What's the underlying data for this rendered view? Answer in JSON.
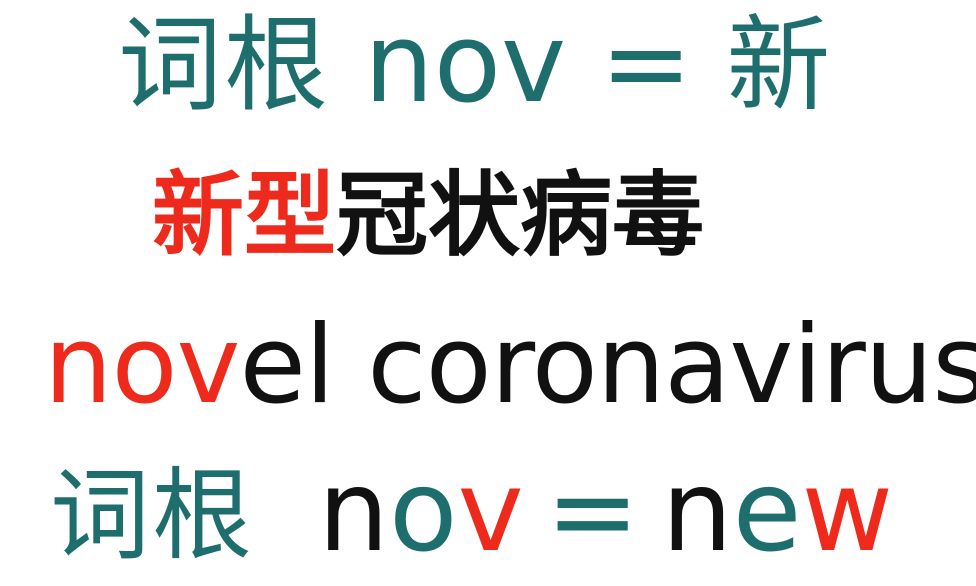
{
  "line1": {
    "root_label": "词根",
    "root": "nov",
    "equals": "=",
    "meaning_cn": "新"
  },
  "line2": {
    "highlight": "新型",
    "rest": "冠状病毒"
  },
  "line3": {
    "highlight": "nov",
    "rest": "el coronavirus"
  },
  "line4": {
    "root_label": "词根",
    "n": "n",
    "o": "o",
    "v": "v",
    "equals": "=",
    "ne_n": "n",
    "ne_e": "e",
    "ne_w": "w"
  },
  "colors": {
    "teal": "#1e6e6e",
    "red": "#ee2a1c",
    "black": "#111111"
  }
}
